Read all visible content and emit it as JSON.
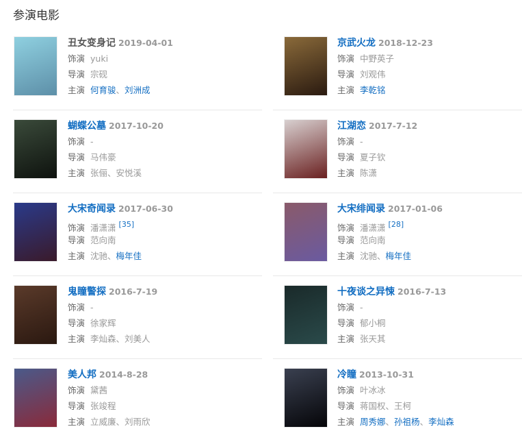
{
  "page_title": "参演电影",
  "labels": {
    "role": "饰演",
    "director": "导演",
    "starring": "主演"
  },
  "separator": "、",
  "colors": {
    "link": "#136ec2",
    "text": "#999999",
    "label": "#666666"
  },
  "movies": [
    {
      "title": "丑女变身记",
      "title_link": false,
      "date": "2019-04-01",
      "role": "yuki",
      "role_ref": "",
      "director": "宗砚",
      "starring": [
        {
          "name": "何育骏",
          "link": true
        },
        {
          "name": "刘洲成",
          "link": true
        }
      ],
      "poster": [
        "#8fd0e0",
        "#5d8fa8"
      ]
    },
    {
      "title": "京武火龙",
      "title_link": true,
      "date": "2018-12-23",
      "role": "中野英子",
      "role_ref": "",
      "director": "刘观伟",
      "starring": [
        {
          "name": "李乾铭",
          "link": true
        }
      ],
      "poster": [
        "#8a6a3a",
        "#2a1a10"
      ]
    },
    {
      "title": "蝴蝶公墓",
      "title_link": true,
      "date": "2017-10-20",
      "role": "-",
      "role_ref": "",
      "director": "马伟豪",
      "starring": [
        {
          "name": "张俪",
          "link": false
        },
        {
          "name": "安悦溪",
          "link": false
        }
      ],
      "poster": [
        "#3a4a3a",
        "#0e120e"
      ]
    },
    {
      "title": "江湖恋",
      "title_link": true,
      "date": "2017-7-12",
      "role": "-",
      "role_ref": "",
      "director": "夏子钦",
      "starring": [
        {
          "name": "陈潇",
          "link": false
        }
      ],
      "poster": [
        "#d8d0d0",
        "#6a2020"
      ]
    },
    {
      "title": "大宋奇闻录",
      "title_link": true,
      "date": "2017-06-30",
      "role": "潘潇潇",
      "role_ref": "[35]",
      "director": "范向南",
      "starring": [
        {
          "name": "沈驰",
          "link": false
        },
        {
          "name": "梅年佳",
          "link": true
        }
      ],
      "poster": [
        "#2a3a8a",
        "#3a1a2a"
      ]
    },
    {
      "title": "大宋绯闻录",
      "title_link": true,
      "date": "2017-01-06",
      "role": "潘潇潇",
      "role_ref": "[28]",
      "director": "范向南",
      "starring": [
        {
          "name": "沈驰",
          "link": false
        },
        {
          "name": "梅年佳",
          "link": true
        }
      ],
      "poster": [
        "#8a5a6a",
        "#6a5aa0"
      ]
    },
    {
      "title": "鬼瞳警探",
      "title_link": true,
      "date": "2016-7-19",
      "role": "-",
      "role_ref": "",
      "director": "徐家辉",
      "starring": [
        {
          "name": "李灿森",
          "link": false
        },
        {
          "name": "刘美人",
          "link": false
        }
      ],
      "poster": [
        "#5a3a2a",
        "#2a1810"
      ]
    },
    {
      "title": "十夜谈之异悚",
      "title_link": true,
      "date": "2016-7-13",
      "role": "-",
      "role_ref": "",
      "director": "郁小桐",
      "starring": [
        {
          "name": "张天其",
          "link": false
        }
      ],
      "poster": [
        "#1a2a2a",
        "#2a4a4a"
      ]
    },
    {
      "title": "美人邦",
      "title_link": true,
      "date": "2014-8-28",
      "role": "黛茜",
      "role_ref": "",
      "director": "张竣程",
      "starring": [
        {
          "name": "立威廉",
          "link": false
        },
        {
          "name": "刘雨欣",
          "link": false
        }
      ],
      "poster": [
        "#4a5a8a",
        "#8a2a3a"
      ]
    },
    {
      "title": "冷瞳",
      "title_link": true,
      "date": "2013-10-31",
      "role": "叶冰冰",
      "role_ref": "",
      "director": "蒋国权、王柯",
      "starring": [
        {
          "name": "周秀娜",
          "link": true
        },
        {
          "name": "孙祖杨",
          "link": true
        },
        {
          "name": "李灿森",
          "link": true
        }
      ],
      "poster": [
        "#3a4050",
        "#050508"
      ]
    }
  ]
}
